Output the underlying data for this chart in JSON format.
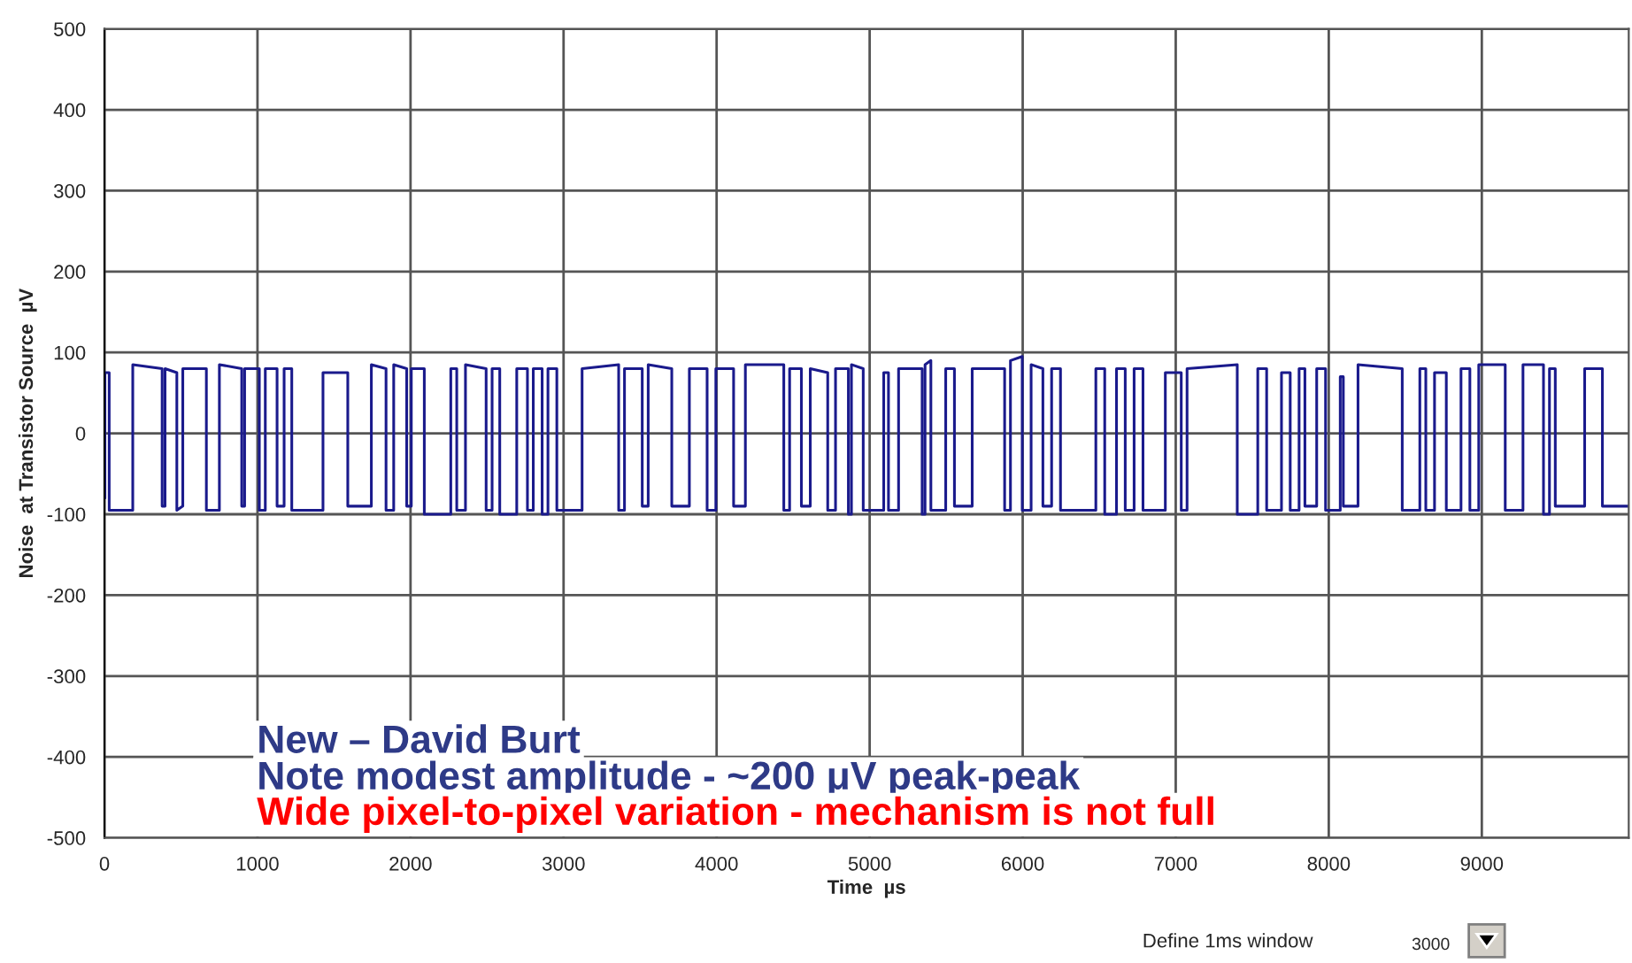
{
  "chart_data": {
    "type": "line",
    "xlabel": "Time  µs",
    "ylabel": "Noise  at Transistor Source  µV",
    "annotations": [
      "New – David Burt",
      "Note modest amplitude - ~200 μV peak-peak",
      "Wide pixel-to-pixel variation - mechanism is not full",
      "Define 1ms window",
      "3000"
    ],
    "xlim": [
      0,
      9960
    ],
    "xticks": [
      0,
      1000,
      2000,
      3000,
      4000,
      5000,
      6000,
      7000,
      8000,
      9000
    ],
    "ylim": [
      -500,
      500
    ],
    "yticks": [
      -500,
      -400,
      -300,
      -200,
      -100,
      0,
      100,
      200,
      300,
      400,
      500
    ],
    "grid": true,
    "line_style": "solid",
    "marker": "none",
    "series": [
      {
        "color": "#1a1a8c",
        "x": [
          0,
          3,
          3,
          31,
          31,
          185,
          185,
          377,
          377,
          396,
          396,
          473,
          473,
          512,
          512,
          666,
          666,
          751,
          751,
          897,
          897,
          916,
          916,
          1012,
          1012,
          1051,
          1051,
          1128,
          1128,
          1174,
          1174,
          1224,
          1224,
          1428,
          1428,
          1590,
          1590,
          1744,
          1744,
          1840,
          1840,
          1890,
          1890,
          1975,
          1975,
          2005,
          2005,
          2090,
          2090,
          2263,
          2263,
          2302,
          2302,
          2359,
          2359,
          2494,
          2494,
          2533,
          2533,
          2583,
          2583,
          2694,
          2694,
          2764,
          2764,
          2802,
          2802,
          2860,
          2860,
          2898,
          2898,
          2956,
          2956,
          3121,
          3121,
          3360,
          3360,
          3398,
          3398,
          3514,
          3514,
          3553,
          3553,
          3707,
          3707,
          3822,
          3822,
          3938,
          3938,
          3995,
          3995,
          4111,
          4111,
          4188,
          4188,
          4439,
          4439,
          4477,
          4477,
          4554,
          4554,
          4612,
          4612,
          4726,
          4726,
          4777,
          4777,
          4861,
          4861,
          4881,
          4881,
          4958,
          4958,
          5092,
          5092,
          5123,
          5123,
          5189,
          5189,
          5343,
          5343,
          5362,
          5362,
          5400,
          5400,
          5497,
          5497,
          5554,
          5554,
          5670,
          5670,
          5882,
          5882,
          5920,
          5920,
          5997,
          5997,
          6055,
          6055,
          6132,
          6132,
          6189,
          6189,
          6247,
          6247,
          6478,
          6478,
          6536,
          6536,
          6613,
          6613,
          6670,
          6670,
          6728,
          6728,
          6786,
          6786,
          6932,
          6932,
          7036,
          7036,
          7074,
          7074,
          7402,
          7402,
          7536,
          7536,
          7594,
          7594,
          7691,
          7691,
          7748,
          7748,
          7806,
          7806,
          7844,
          7844,
          7921,
          7921,
          7979,
          7979,
          8075,
          8075,
          8095,
          8095,
          8191,
          8191,
          8480,
          8480,
          8595,
          8595,
          8634,
          8634,
          8691,
          8691,
          8768,
          8768,
          8864,
          8864,
          8922,
          8922,
          8980,
          8980,
          9153,
          9153,
          9269,
          9269,
          9403,
          9403,
          9442,
          9442,
          9480,
          9480,
          9672,
          9672,
          9788,
          9788,
          9960
        ],
        "values": [
          -80,
          -80,
          75,
          75,
          -95,
          -95,
          85,
          80,
          -90,
          -90,
          80,
          75,
          -95,
          -90,
          80,
          80,
          -95,
          -95,
          85,
          80,
          -90,
          -90,
          80,
          80,
          -95,
          -95,
          80,
          80,
          -90,
          -90,
          80,
          80,
          -95,
          -95,
          75,
          75,
          -90,
          -90,
          85,
          80,
          -95,
          -95,
          85,
          80,
          -90,
          -90,
          80,
          80,
          -100,
          -100,
          80,
          80,
          -95,
          -95,
          85,
          80,
          -95,
          -95,
          80,
          80,
          -100,
          -100,
          80,
          80,
          -95,
          -95,
          80,
          80,
          -100,
          -100,
          80,
          80,
          -95,
          -95,
          80,
          85,
          -95,
          -95,
          80,
          80,
          -90,
          -90,
          85,
          80,
          -90,
          -90,
          80,
          80,
          -95,
          -95,
          80,
          80,
          -90,
          -90,
          85,
          85,
          -95,
          -95,
          80,
          80,
          -90,
          -90,
          80,
          75,
          -95,
          -95,
          80,
          80,
          -100,
          -100,
          85,
          80,
          -95,
          -95,
          75,
          75,
          -95,
          -95,
          80,
          80,
          -100,
          -100,
          85,
          90,
          -95,
          -95,
          80,
          80,
          -90,
          -90,
          80,
          80,
          -95,
          -95,
          90,
          95,
          -95,
          -95,
          85,
          80,
          -90,
          -90,
          80,
          80,
          -95,
          -95,
          80,
          80,
          -100,
          -100,
          80,
          80,
          -95,
          -95,
          80,
          80,
          -95,
          -95,
          75,
          75,
          -95,
          -95,
          80,
          85,
          -100,
          -100,
          80,
          80,
          -95,
          -95,
          75,
          75,
          -95,
          -95,
          80,
          80,
          -90,
          -90,
          80,
          80,
          -95,
          -95,
          70,
          70,
          -90,
          -90,
          85,
          80,
          -95,
          -95,
          80,
          80,
          -95,
          -95,
          75,
          75,
          -95,
          -95,
          80,
          80,
          -95,
          -95,
          85,
          85,
          -95,
          -95,
          85,
          85,
          -100,
          -100,
          80,
          80,
          -90,
          -90,
          80,
          80,
          -90,
          -90
        ]
      }
    ]
  }
}
